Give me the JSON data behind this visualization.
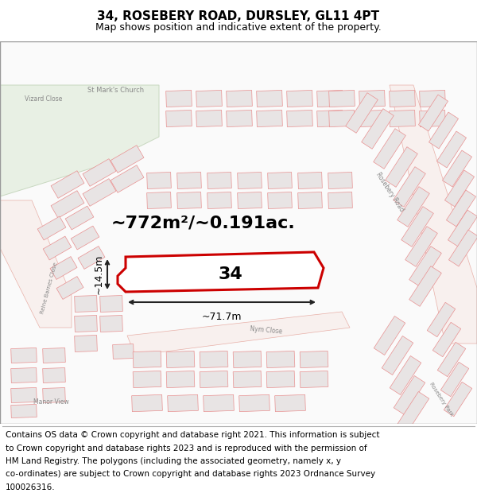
{
  "title": "34, ROSEBERY ROAD, DURSLEY, GL11 4PT",
  "subtitle": "Map shows position and indicative extent of the property.",
  "title_fontsize": 11,
  "subtitle_fontsize": 9,
  "map_bg": "#fafafa",
  "header_bg": "#ffffff",
  "footer_bg": "#ffffff",
  "footer_lines": [
    "Contains OS data © Crown copyright and database right 2021. This information is subject",
    "to Crown copyright and database rights 2023 and is reproduced with the permission of",
    "HM Land Registry. The polygons (including the associated geometry, namely x, y",
    "co-ordinates) are subject to Crown copyright and database rights 2023 Ordnance Survey",
    "100026316."
  ],
  "footer_fontsize": 7.5,
  "area_text": "~772m²/~0.191ac.",
  "area_fontsize": 16,
  "label_34": "34",
  "label_34_fontsize": 16,
  "dim_width_text": "~71.7m",
  "dim_height_text": "~14.5m",
  "dim_fontsize": 9,
  "plot_color": "#cc0000",
  "plot_linewidth": 2.2,
  "building_ec": "#e89090",
  "building_fc": "#f0ecec",
  "building_fc2": "#e8e4e4",
  "road_stripe_color": "#f0c0c0",
  "green_fc": "#e8f0e8",
  "green_ec": "#c0d8c0"
}
